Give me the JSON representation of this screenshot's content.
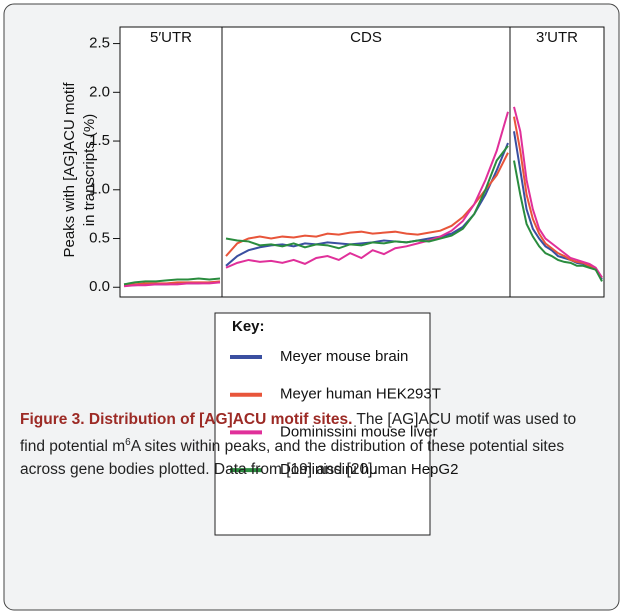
{
  "chart_data": {
    "type": "line",
    "ylabel": [
      "Peaks with [AG]ACU motif",
      "in transcripts (%)"
    ],
    "panels": [
      "5′UTR",
      "CDS",
      "3′UTR"
    ],
    "ylim": [
      -0.1,
      2.67
    ],
    "yticks": [
      {
        "value": 0,
        "label": "0.0"
      },
      0.5,
      {
        "value": 1,
        "label": "1.0"
      },
      1.5,
      {
        "value": 2,
        "label": "2.0"
      },
      2.5
    ],
    "legend_title": "Key:",
    "series": [
      {
        "name": "Meyer mouse brain",
        "color": "#3a4fa0",
        "values": [
          [
            0.02,
            0.02,
            0.03,
            0.03,
            0.03,
            0.04,
            0.04,
            0.04,
            0.05,
            0.05
          ],
          [
            0.22,
            0.32,
            0.38,
            0.41,
            0.43,
            0.44,
            0.42,
            0.45,
            0.44,
            0.46,
            0.45,
            0.44,
            0.45,
            0.46,
            0.48,
            0.47,
            0.46,
            0.48,
            0.5,
            0.52,
            0.55,
            0.62,
            0.75,
            0.95,
            1.2,
            1.48
          ],
          [
            1.6,
            1.2,
            0.8,
            0.6,
            0.5,
            0.42,
            0.38,
            0.32,
            0.3,
            0.28,
            0.25,
            0.24,
            0.22,
            0.18,
            0.08
          ]
        ]
      },
      {
        "name": "Meyer human HEK293T",
        "color": "#e8553a",
        "values": [
          [
            0.03,
            0.03,
            0.04,
            0.04,
            0.04,
            0.05,
            0.05,
            0.05,
            0.05,
            0.06
          ],
          [
            0.32,
            0.45,
            0.5,
            0.52,
            0.5,
            0.52,
            0.51,
            0.53,
            0.52,
            0.55,
            0.54,
            0.56,
            0.57,
            0.55,
            0.56,
            0.57,
            0.55,
            0.54,
            0.56,
            0.58,
            0.63,
            0.72,
            0.85,
            1.0,
            1.15,
            1.38
          ],
          [
            1.75,
            1.4,
            0.95,
            0.7,
            0.55,
            0.45,
            0.4,
            0.35,
            0.32,
            0.28,
            0.26,
            0.25,
            0.22,
            0.18,
            0.1
          ]
        ]
      },
      {
        "name": "Dominissini mouse liver",
        "color": "#e0309a",
        "values": [
          [
            0.01,
            0.02,
            0.02,
            0.03,
            0.03,
            0.03,
            0.04,
            0.04,
            0.04,
            0.05
          ],
          [
            0.2,
            0.25,
            0.28,
            0.26,
            0.27,
            0.25,
            0.28,
            0.24,
            0.3,
            0.32,
            0.28,
            0.35,
            0.3,
            0.38,
            0.34,
            0.4,
            0.42,
            0.45,
            0.48,
            0.52,
            0.58,
            0.68,
            0.85,
            1.1,
            1.4,
            1.8
          ],
          [
            1.85,
            1.6,
            1.1,
            0.8,
            0.6,
            0.5,
            0.45,
            0.4,
            0.35,
            0.3,
            0.28,
            0.26,
            0.24,
            0.2,
            0.1
          ]
        ]
      },
      {
        "name": "Dominissini human HepG2",
        "color": "#2a8c3e",
        "values": [
          [
            0.03,
            0.05,
            0.06,
            0.06,
            0.07,
            0.08,
            0.08,
            0.09,
            0.08,
            0.09
          ],
          [
            0.5,
            0.48,
            0.47,
            0.43,
            0.44,
            0.42,
            0.45,
            0.41,
            0.44,
            0.43,
            0.4,
            0.44,
            0.43,
            0.46,
            0.45,
            0.47,
            0.46,
            0.48,
            0.47,
            0.5,
            0.53,
            0.6,
            0.75,
            1.0,
            1.3,
            1.45
          ],
          [
            1.3,
            0.95,
            0.65,
            0.52,
            0.42,
            0.35,
            0.32,
            0.28,
            0.26,
            0.25,
            0.22,
            0.22,
            0.2,
            0.18,
            0.06
          ]
        ]
      }
    ]
  },
  "caption": {
    "title": "Figure 3. Distribution of [AG]ACU motif sites.",
    "text_before": "The [AG]ACU motif was used to find potential m",
    "superscript": "6",
    "text_after": "A sites within peaks, and the distribution of these potential sites across gene bodies plotted. Data from [19] and [20]."
  }
}
